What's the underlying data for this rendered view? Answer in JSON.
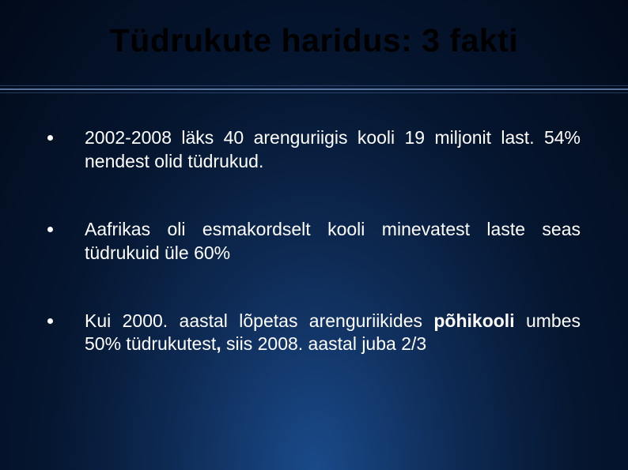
{
  "slide": {
    "title": "Tüdrukute haridus: 3 fakti",
    "background": {
      "gradient_center": "#1a4a8a",
      "gradient_mid": "#0d2850",
      "gradient_outer": "#051630",
      "gradient_edge": "#020a1a"
    },
    "title_color": "#000000",
    "title_fontsize": 41,
    "text_color": "#ffffff",
    "body_fontsize": 23,
    "divider_colors": [
      "#4a6a9a",
      "#6a8ab8",
      "#4a6a9a"
    ],
    "bullets": [
      {
        "text_parts": [
          {
            "text": "2002-2008 läks 40 arenguriigis kooli 19 miljonit last. 54% nendest olid tüdrukud.",
            "bold": false
          }
        ]
      },
      {
        "text_parts": [
          {
            "text": "Aafrikas oli esmakordselt kooli minevatest laste seas tüdrukuid üle 60%",
            "bold": false
          }
        ]
      },
      {
        "text_parts": [
          {
            "text": "Kui 2000. aastal lõpetas arenguriikides ",
            "bold": false
          },
          {
            "text": " põhikooli",
            "bold": true
          },
          {
            "text": " umbes 50% tüdrukutest",
            "bold": false
          },
          {
            "text": ",",
            "bold": true
          },
          {
            "text": " siis 2008. aastal juba 2/3",
            "bold": false
          }
        ]
      }
    ]
  }
}
